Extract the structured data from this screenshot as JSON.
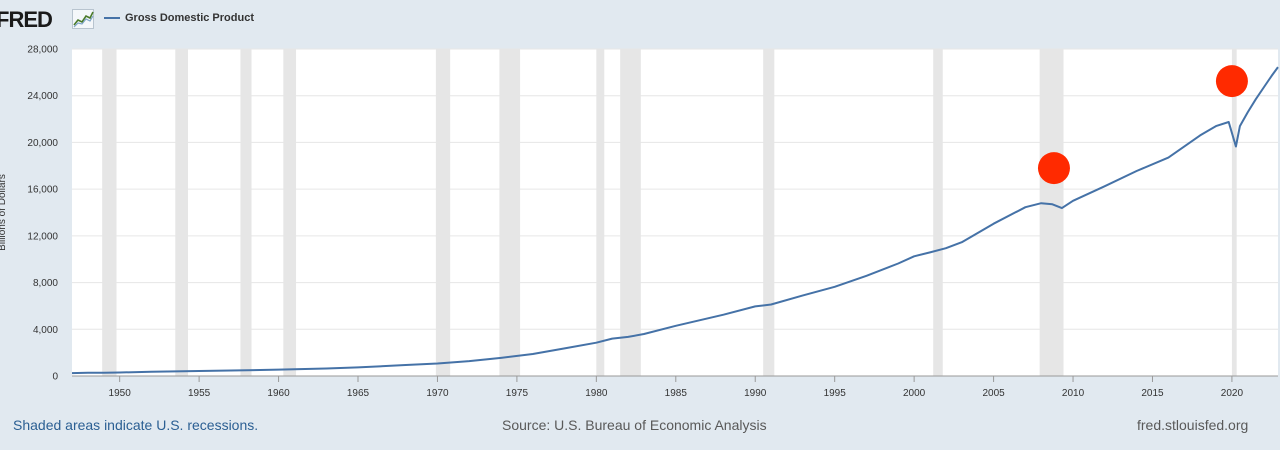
{
  "header": {
    "logo": "FRED",
    "legend_label": "Gross Domestic Product"
  },
  "footer": {
    "recessions_note": "Shaded areas indicate U.S. recessions.",
    "source": "Source: U.S. Bureau of Economic Analysis",
    "site": "fred.stlouisfed.org"
  },
  "colors": {
    "line": "#4572a7",
    "recession": "#e6e6e6",
    "marker": "#ff2a00",
    "background": "#e1e9f0"
  },
  "chart_data": {
    "type": "line",
    "title": "",
    "xlabel": "",
    "ylabel": "Billions of Dollars",
    "xlim": [
      1947.0,
      2022.9
    ],
    "ylim": [
      0,
      28000
    ],
    "y_ticks": [
      0,
      4000,
      8000,
      12000,
      16000,
      20000,
      24000,
      28000
    ],
    "y_tick_labels": [
      "0",
      "4,000",
      "8,000",
      "12,000",
      "16,000",
      "20,000",
      "24,000",
      "28,000"
    ],
    "x_ticks": [
      1950,
      1955,
      1960,
      1965,
      1970,
      1975,
      1980,
      1985,
      1990,
      1995,
      2000,
      2005,
      2010,
      2015,
      2020
    ],
    "grid": true,
    "legend": "top-left",
    "recessions": [
      [
        1948.9,
        1949.8
      ],
      [
        1953.5,
        1954.3
      ],
      [
        1957.6,
        1958.3
      ],
      [
        1960.3,
        1961.1
      ],
      [
        1969.9,
        1970.8
      ],
      [
        1973.9,
        1975.2
      ],
      [
        1980.0,
        1980.5
      ],
      [
        1981.5,
        1982.8
      ],
      [
        1990.5,
        1991.2
      ],
      [
        2001.2,
        2001.8
      ],
      [
        2007.9,
        2009.4
      ],
      [
        2020.0,
        2020.3
      ]
    ],
    "series": [
      {
        "name": "Gross Domestic Product",
        "x": [
          1947,
          1948,
          1949,
          1950,
          1952,
          1955,
          1958,
          1960,
          1963,
          1965,
          1968,
          1970,
          1972,
          1974,
          1976,
          1978,
          1980,
          1981,
          1982,
          1983,
          1985,
          1988,
          1990,
          1991,
          1993,
          1995,
          1997,
          1999,
          2000,
          2001,
          2002,
          2003,
          2005,
          2007,
          2008,
          2008.7,
          2009.3,
          2010,
          2012,
          2014,
          2016,
          2018,
          2019,
          2019.8,
          2020.25,
          2020.5,
          2021,
          2021.5,
          2022,
          2022.5,
          2022.9
        ],
        "values": [
          245,
          275,
          270,
          300,
          370,
          425,
          490,
          545,
          640,
          740,
          940,
          1070,
          1280,
          1550,
          1880,
          2360,
          2850,
          3200,
          3350,
          3600,
          4300,
          5250,
          5960,
          6120,
          6900,
          7640,
          8580,
          9630,
          10250,
          10580,
          10940,
          11460,
          13040,
          14450,
          14800,
          14700,
          14380,
          15000,
          16250,
          17550,
          18700,
          20600,
          21400,
          21750,
          19650,
          21400,
          22600,
          23700,
          24700,
          25700,
          26450
        ]
      }
    ],
    "annotations": [
      {
        "type": "marker",
        "x": 2008.8,
        "y": 17800,
        "color": "#ff2a00"
      },
      {
        "type": "marker",
        "x": 2020.0,
        "y": 25250,
        "color": "#ff2a00"
      }
    ]
  }
}
